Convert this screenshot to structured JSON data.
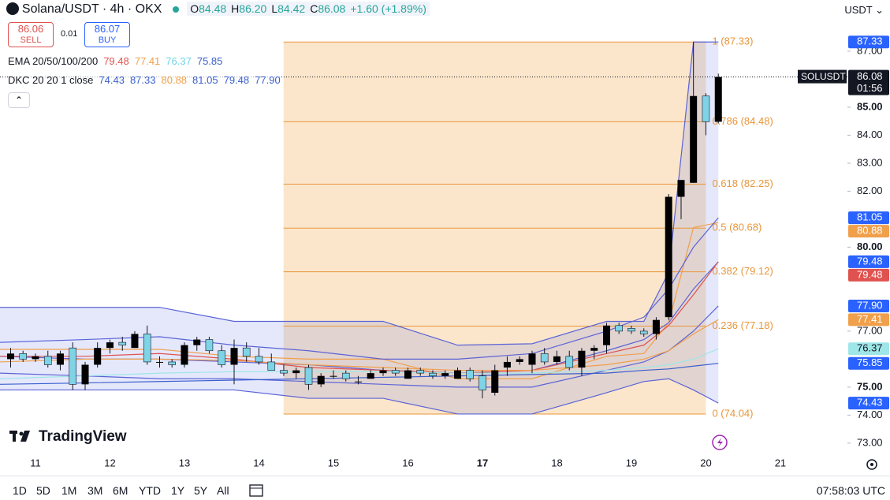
{
  "header": {
    "symbol": "Solana/USDT · 4h · OKX",
    "ohlc": [
      {
        "key": "O",
        "value": "84.48"
      },
      {
        "key": "H",
        "value": "86.20"
      },
      {
        "key": "L",
        "value": "84.42"
      },
      {
        "key": "C",
        "value": "86.08"
      }
    ],
    "change": "+1.60 (+1.89%)",
    "sell_price": "86.06",
    "sell": "SELL",
    "spread": "0.01",
    "buy_price": "86.07",
    "buy": "BUY",
    "currency": "USDT"
  },
  "indicators": {
    "ema_label": "EMA 20/50/100/200",
    "ema_values": [
      "79.48",
      "77.41",
      "76.37",
      "75.85"
    ],
    "ema_colors": [
      "#e0524f",
      "#f0a04b",
      "#6fd6e6",
      "#3a5fcd"
    ],
    "dkc_label": "DKC 20 20 1 close",
    "dkc_values": [
      "74.43",
      "87.33",
      "80.88",
      "81.05",
      "79.48",
      "77.90"
    ],
    "dkc_colors": [
      "#3a5fcd",
      "#3a5fcd",
      "#f0a04b",
      "#3a5fcd",
      "#3a5fcd",
      "#3a5fcd"
    ]
  },
  "brand": "TradingView",
  "footer": {
    "ranges": [
      "1D",
      "5D",
      "1M",
      "3M",
      "6M",
      "YTD",
      "1Y",
      "5Y",
      "All"
    ],
    "time": "07:58:03 UTC"
  },
  "chart_data": {
    "type": "candlestick",
    "up_color": "#000000",
    "down_color": "#7fd3e6",
    "x": [
      10.667,
      10.833,
      11.0,
      11.167,
      11.333,
      11.5,
      11.667,
      11.833,
      12.0,
      12.167,
      12.333,
      12.5,
      12.667,
      12.833,
      13.0,
      13.167,
      13.333,
      13.5,
      13.667,
      13.833,
      14.0,
      14.167,
      14.333,
      14.5,
      14.667,
      14.833,
      15.0,
      15.167,
      15.333,
      15.5,
      15.667,
      15.833,
      16.0,
      16.167,
      16.333,
      16.5,
      16.667,
      16.833,
      17.0,
      17.167,
      17.333,
      17.5,
      17.667,
      17.833,
      18.0,
      18.167,
      18.333,
      18.5,
      18.667,
      18.833,
      19.0,
      19.167,
      19.333,
      19.5,
      19.667,
      19.833,
      20.0,
      20.167
    ],
    "open": [
      76.0,
      76.2,
      76.0,
      76.1,
      75.8,
      76.4,
      75.1,
      75.8,
      76.4,
      76.6,
      76.4,
      76.9,
      75.9,
      75.9,
      75.8,
      76.5,
      76.7,
      76.3,
      75.8,
      76.4,
      76.1,
      75.9,
      75.6,
      75.5,
      75.7,
      75.1,
      75.4,
      75.5,
      75.2,
      75.3,
      75.5,
      75.6,
      75.3,
      75.6,
      75.5,
      75.4,
      75.3,
      75.6,
      75.4,
      74.8,
      75.7,
      75.9,
      75.8,
      76.2,
      75.9,
      76.1,
      75.7,
      76.3,
      76.5,
      77.2,
      77.1,
      77.0,
      76.9,
      77.5,
      81.8,
      82.3,
      85.4,
      84.48
    ],
    "high": [
      76.4,
      76.3,
      76.2,
      76.3,
      76.3,
      76.6,
      75.9,
      76.6,
      76.7,
      76.8,
      77.0,
      77.2,
      76.1,
      76.0,
      76.6,
      76.8,
      76.8,
      76.5,
      76.7,
      76.6,
      76.4,
      76.2,
      75.8,
      75.7,
      75.8,
      75.5,
      75.6,
      75.6,
      75.4,
      75.6,
      75.7,
      75.7,
      75.7,
      75.7,
      75.6,
      75.6,
      75.7,
      75.7,
      75.6,
      75.8,
      76.1,
      76.1,
      76.3,
      76.4,
      76.3,
      76.3,
      76.4,
      76.5,
      77.3,
      77.3,
      77.2,
      77.1,
      77.5,
      81.9,
      82.4,
      87.33,
      85.5,
      86.2
    ],
    "low": [
      75.7,
      75.9,
      75.9,
      75.7,
      75.6,
      74.9,
      74.9,
      75.7,
      76.2,
      76.3,
      76.4,
      75.8,
      75.7,
      75.7,
      75.7,
      76.3,
      76.2,
      75.7,
      75.1,
      75.9,
      75.8,
      75.6,
      75.4,
      75.3,
      74.9,
      75.0,
      75.3,
      75.2,
      75.1,
      75.3,
      75.4,
      75.4,
      75.3,
      75.4,
      75.3,
      75.3,
      75.3,
      75.2,
      74.6,
      74.7,
      75.4,
      75.8,
      75.5,
      75.8,
      75.8,
      75.6,
      75.4,
      76.0,
      76.2,
      76.9,
      76.9,
      76.8,
      76.7,
      77.4,
      81.0,
      82.3,
      84.0,
      84.42
    ],
    "close": [
      76.2,
      76.0,
      76.1,
      75.8,
      76.2,
      75.1,
      75.8,
      76.4,
      76.6,
      76.5,
      76.9,
      75.9,
      75.9,
      75.8,
      76.5,
      76.7,
      76.3,
      75.8,
      76.4,
      76.1,
      75.9,
      75.6,
      75.5,
      75.6,
      75.1,
      75.4,
      75.4,
      75.3,
      75.2,
      75.5,
      75.6,
      75.5,
      75.6,
      75.5,
      75.4,
      75.5,
      75.6,
      75.3,
      74.9,
      75.6,
      75.9,
      76.0,
      76.2,
      75.9,
      76.1,
      75.7,
      76.3,
      76.4,
      77.2,
      77.0,
      77.0,
      76.9,
      77.4,
      81.8,
      82.4,
      85.4,
      84.48,
      86.08
    ],
    "xlim": [
      10.524,
      21.9
    ],
    "xticks": [
      11,
      12,
      13,
      14,
      15,
      16,
      17,
      18,
      19,
      20,
      21
    ],
    "highlight_xtick": 17,
    "ylim": [
      72.63,
      88.83
    ],
    "yticks": [
      {
        "value": 73,
        "label": "73.00"
      },
      {
        "value": 74,
        "label": "74.00"
      },
      {
        "value": 75,
        "label": "75.00"
      },
      {
        "value": 77,
        "label": "77.00"
      },
      {
        "value": 80,
        "label": "80.00"
      },
      {
        "value": 82,
        "label": "82.00"
      },
      {
        "value": 83,
        "label": "83.00"
      },
      {
        "value": 84,
        "label": "84.00"
      },
      {
        "value": 85,
        "label": "85.00"
      },
      {
        "value": 87,
        "label": "87.00"
      }
    ],
    "band_fill": "rgba(110,125,235,0.18)",
    "overlays": [
      {
        "color": "#5b63d6",
        "x": [
          10.524,
          11.667,
          12.667,
          13.667,
          14.667,
          15.667,
          16.667,
          17.667,
          18.667,
          19.167,
          19.5,
          19.833,
          20.167
        ],
        "values": [
          77.85,
          77.85,
          77.85,
          77.35,
          77.35,
          77.35,
          76.5,
          76.55,
          77.35,
          77.35,
          79.1,
          87.33,
          87.33
        ]
      },
      {
        "color": "#5b63d6",
        "x": [
          10.524,
          11.667,
          12.667,
          13.667,
          14.667,
          15.667,
          16.667,
          17.667,
          18.667,
          19.167,
          19.5,
          19.833,
          20.167
        ],
        "values": [
          74.9,
          74.9,
          74.9,
          74.9,
          74.6,
          74.6,
          74.04,
          74.04,
          74.8,
          75.2,
          75.3,
          74.9,
          74.43
        ]
      },
      {
        "color": "#f0a04b",
        "x": [
          10.524,
          11.667,
          12.667,
          13.667,
          14.667,
          15.667,
          16.667,
          17.667,
          18.667,
          19.167,
          19.5,
          19.833,
          20.167
        ],
        "values": [
          76.35,
          76.35,
          76.35,
          76.1,
          76.0,
          76.0,
          75.3,
          75.3,
          76.1,
          76.2,
          77.3,
          80.7,
          80.88
        ]
      },
      {
        "color": "#5b63d6",
        "x": [
          10.524,
          11.667,
          12.667,
          13.667,
          14.667,
          15.667,
          16.667,
          17.667,
          18.667,
          19.167,
          19.5,
          19.833,
          20.167
        ],
        "values": [
          76.6,
          76.7,
          76.8,
          76.5,
          76.3,
          76.0,
          76.0,
          76.2,
          77.0,
          77.5,
          78.5,
          80.0,
          81.05
        ]
      },
      {
        "color": "#5b63d6",
        "x": [
          10.524,
          11.667,
          12.667,
          13.667,
          14.667,
          15.667,
          16.667,
          17.667,
          18.667,
          19.167,
          19.5,
          19.833,
          20.167
        ],
        "values": [
          76.1,
          76.0,
          76.0,
          75.9,
          75.8,
          75.6,
          75.5,
          75.6,
          76.3,
          76.7,
          77.3,
          78.5,
          79.48
        ]
      },
      {
        "color": "#5b63d6",
        "x": [
          10.524,
          11.667,
          12.667,
          13.667,
          14.667,
          15.667,
          16.667,
          17.667,
          18.667,
          19.167,
          19.5,
          19.833,
          20.167
        ],
        "values": [
          75.5,
          75.4,
          75.3,
          75.3,
          75.2,
          75.1,
          75.0,
          75.0,
          75.6,
          75.9,
          76.3,
          77.0,
          77.9
        ]
      },
      {
        "color": "#e0524f",
        "x": [
          10.524,
          11.667,
          12.667,
          13.667,
          14.667,
          15.667,
          16.667,
          17.667,
          18.667,
          19.167,
          19.5,
          19.833,
          20.167
        ],
        "values": [
          76.1,
          76.1,
          76.2,
          76.0,
          75.7,
          75.6,
          75.5,
          75.6,
          76.2,
          76.5,
          77.2,
          78.3,
          79.48
        ]
      },
      {
        "color": "#f0a04b",
        "x": [
          10.524,
          11.667,
          12.667,
          13.667,
          14.667,
          15.667,
          16.667,
          17.667,
          18.667,
          19.167,
          19.5,
          19.833,
          20.167
        ],
        "values": [
          75.9,
          76.0,
          76.0,
          75.95,
          75.8,
          75.7,
          75.6,
          75.6,
          75.8,
          76.0,
          76.3,
          76.9,
          77.41
        ]
      },
      {
        "color": "#9ee6e8",
        "x": [
          10.524,
          11.667,
          12.667,
          13.667,
          14.667,
          15.667,
          16.667,
          17.667,
          18.667,
          19.167,
          19.5,
          19.833,
          20.167
        ],
        "values": [
          75.3,
          75.4,
          75.5,
          75.55,
          75.55,
          75.55,
          75.5,
          75.5,
          75.6,
          75.7,
          75.8,
          76.0,
          76.37
        ]
      },
      {
        "color": "#3a5fcd",
        "x": [
          10.524,
          11.667,
          12.667,
          13.667,
          14.667,
          15.667,
          16.667,
          17.667,
          18.667,
          19.167,
          19.5,
          19.833,
          20.167
        ],
        "values": [
          75.1,
          75.15,
          75.2,
          75.25,
          75.3,
          75.35,
          75.4,
          75.45,
          75.5,
          75.6,
          75.65,
          75.75,
          75.85
        ]
      }
    ],
    "fib": {
      "range": [
        14.33,
        20.0
      ],
      "color": "#e8963a",
      "fill": "rgba(246,200,140,0.45)",
      "levels": [
        {
          "value": 87.33,
          "label": "1 (87.33)"
        },
        {
          "value": 84.48,
          "label": "0.786 (84.48)"
        },
        {
          "value": 82.25,
          "label": "0.618 (82.25)"
        },
        {
          "value": 80.68,
          "label": "0.5 (80.68)"
        },
        {
          "value": 79.12,
          "label": "0.382 (79.12)"
        },
        {
          "value": 77.18,
          "label": "0.236 (77.18)"
        },
        {
          "value": 74.04,
          "label": "0 (74.04)"
        }
      ]
    },
    "last_price": {
      "value": 86.08,
      "label": "86.08",
      "symbol": "SOLUSDT",
      "countdown": "01:56"
    },
    "price_badges": [
      {
        "value": 87.33,
        "color": "#2962ff"
      },
      {
        "value": 81.05,
        "color": "#2962ff"
      },
      {
        "value": 80.88,
        "color": "#f0a04b"
      },
      {
        "value": 79.48,
        "color": "#2962ff"
      },
      {
        "value": 79.48,
        "color": "#e0524f"
      },
      {
        "value": 77.9,
        "label": "77.90",
        "color": "#2962ff"
      },
      {
        "value": 77.41,
        "color": "#f0a04b"
      },
      {
        "value": 76.37,
        "color": "#9ee6e8",
        "text_color": "#131722"
      },
      {
        "value": 75.85,
        "color": "#2962ff"
      },
      {
        "value": 74.43,
        "color": "#2962ff"
      }
    ]
  }
}
